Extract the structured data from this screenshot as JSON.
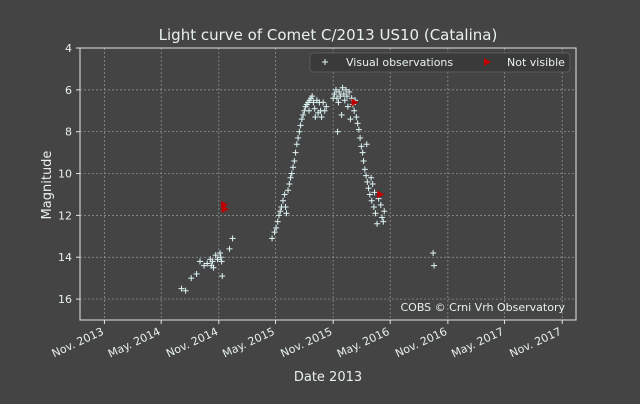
{
  "colors": {
    "background": "#444444",
    "axes_frame": "#dde7e7",
    "text": "#e8f0f0",
    "grid": "#9a9a9a",
    "visual_marker": "#ddf4f4",
    "not_visible_marker": "#c00000",
    "legend_bg": "#3a3a3a"
  },
  "chart_data": {
    "type": "scatter",
    "title": "Light curve of Comet C/2013 US10 (Catalina)",
    "xlabel": "Date 2013",
    "ylabel": "Magnitude",
    "credit": "COBS © Crni Vrh Observatory",
    "x_axis": {
      "kind": "date",
      "range": [
        "2013-08-15",
        "2017-12-15"
      ],
      "ticks": [
        "2013-11-01",
        "2014-05-01",
        "2014-11-01",
        "2015-05-01",
        "2015-11-01",
        "2016-05-01",
        "2016-11-01",
        "2017-05-01",
        "2017-11-01"
      ],
      "tick_labels": [
        "Nov. 2013",
        "May. 2014",
        "Nov. 2014",
        "May. 2015",
        "Nov. 2015",
        "May. 2016",
        "Nov. 2016",
        "May. 2017",
        "Nov. 2017"
      ]
    },
    "y_axis": {
      "range": [
        4,
        17
      ],
      "inverted": true,
      "ticks": [
        4,
        6,
        8,
        10,
        12,
        14,
        16
      ],
      "tick_labels": [
        "4",
        "6",
        "8",
        "10",
        "12",
        "14",
        "16"
      ]
    },
    "grid": true,
    "legend_position": "top-right",
    "series": [
      {
        "name": "Visual observations",
        "marker": "plus",
        "points": [
          [
            "2014-07-05",
            15.5
          ],
          [
            "2014-07-18",
            15.6
          ],
          [
            "2014-08-05",
            15.0
          ],
          [
            "2014-08-22",
            14.8
          ],
          [
            "2014-09-02",
            14.2
          ],
          [
            "2014-09-15",
            14.4
          ],
          [
            "2014-09-25",
            14.3
          ],
          [
            "2014-10-05",
            14.1
          ],
          [
            "2014-10-08",
            14.4
          ],
          [
            "2014-10-12",
            14.2
          ],
          [
            "2014-10-15",
            14.5
          ],
          [
            "2014-10-22",
            13.9
          ],
          [
            "2014-10-28",
            14.1
          ],
          [
            "2014-11-05",
            13.8
          ],
          [
            "2014-11-07",
            14.0
          ],
          [
            "2014-11-10",
            14.2
          ],
          [
            "2014-11-12",
            14.9
          ],
          [
            "2014-12-05",
            13.6
          ],
          [
            "2014-12-15",
            13.1
          ],
          [
            "2015-04-20",
            13.1
          ],
          [
            "2015-04-28",
            12.8
          ],
          [
            "2015-05-03",
            12.6
          ],
          [
            "2015-05-08",
            12.3
          ],
          [
            "2015-05-12",
            12.0
          ],
          [
            "2015-05-16",
            11.8
          ],
          [
            "2015-05-20",
            11.6
          ],
          [
            "2015-05-25",
            11.3
          ],
          [
            "2015-05-30",
            11.0
          ],
          [
            "2015-06-02",
            11.6
          ],
          [
            "2015-06-05",
            11.9
          ],
          [
            "2015-06-10",
            10.8
          ],
          [
            "2015-06-14",
            10.5
          ],
          [
            "2015-06-18",
            10.2
          ],
          [
            "2015-06-22",
            10.0
          ],
          [
            "2015-06-26",
            9.7
          ],
          [
            "2015-06-30",
            9.4
          ],
          [
            "2015-07-04",
            9.0
          ],
          [
            "2015-07-08",
            8.6
          ],
          [
            "2015-07-12",
            8.3
          ],
          [
            "2015-07-16",
            8.0
          ],
          [
            "2015-07-20",
            7.7
          ],
          [
            "2015-07-24",
            7.4
          ],
          [
            "2015-07-28",
            7.2
          ],
          [
            "2015-08-01",
            7.0
          ],
          [
            "2015-08-05",
            6.8
          ],
          [
            "2015-08-09",
            6.7
          ],
          [
            "2015-08-13",
            6.6
          ],
          [
            "2015-08-16",
            7.0
          ],
          [
            "2015-08-18",
            6.5
          ],
          [
            "2015-08-22",
            6.4
          ],
          [
            "2015-08-26",
            6.3
          ],
          [
            "2015-08-30",
            6.6
          ],
          [
            "2015-09-03",
            6.9
          ],
          [
            "2015-09-05",
            7.3
          ],
          [
            "2015-09-10",
            6.5
          ],
          [
            "2015-09-14",
            7.1
          ],
          [
            "2015-09-18",
            6.6
          ],
          [
            "2015-09-22",
            7.0
          ],
          [
            "2015-09-25",
            7.3
          ],
          [
            "2015-09-30",
            6.6
          ],
          [
            "2015-10-05",
            7.0
          ],
          [
            "2015-10-10",
            6.8
          ],
          [
            "2015-11-01",
            6.4
          ],
          [
            "2015-11-05",
            6.2
          ],
          [
            "2015-11-10",
            6.0
          ],
          [
            "2015-11-13",
            6.4
          ],
          [
            "2015-11-15",
            8.0
          ],
          [
            "2015-11-18",
            6.6
          ],
          [
            "2015-11-20",
            6.1
          ],
          [
            "2015-11-24",
            6.3
          ],
          [
            "2015-11-28",
            7.2
          ],
          [
            "2015-12-01",
            5.9
          ],
          [
            "2015-12-05",
            6.2
          ],
          [
            "2015-12-08",
            6.5
          ],
          [
            "2015-12-12",
            6.0
          ],
          [
            "2015-12-15",
            6.3
          ],
          [
            "2015-12-18",
            6.8
          ],
          [
            "2015-12-22",
            6.1
          ],
          [
            "2015-12-26",
            7.4
          ],
          [
            "2015-12-30",
            6.4
          ],
          [
            "2016-01-03",
            6.7
          ],
          [
            "2016-01-07",
            7.0
          ],
          [
            "2016-01-10",
            6.5
          ],
          [
            "2016-01-14",
            7.3
          ],
          [
            "2016-01-18",
            7.6
          ],
          [
            "2016-01-22",
            7.9
          ],
          [
            "2016-01-26",
            8.3
          ],
          [
            "2016-01-30",
            8.7
          ],
          [
            "2016-02-03",
            9.0
          ],
          [
            "2016-02-06",
            9.4
          ],
          [
            "2016-02-10",
            9.8
          ],
          [
            "2016-02-14",
            10.1
          ],
          [
            "2016-02-16",
            8.6
          ],
          [
            "2016-02-18",
            10.4
          ],
          [
            "2016-02-22",
            10.7
          ],
          [
            "2016-02-26",
            11.0
          ],
          [
            "2016-03-01",
            10.2
          ],
          [
            "2016-03-03",
            11.3
          ],
          [
            "2016-03-06",
            10.5
          ],
          [
            "2016-03-10",
            11.6
          ],
          [
            "2016-03-12",
            10.9
          ],
          [
            "2016-03-15",
            11.9
          ],
          [
            "2016-03-20",
            12.4
          ],
          [
            "2016-03-25",
            11.2
          ],
          [
            "2016-04-01",
            11.5
          ],
          [
            "2016-04-05",
            12.1
          ],
          [
            "2016-04-09",
            12.3
          ],
          [
            "2016-04-12",
            11.8
          ],
          [
            "2016-09-15",
            13.8
          ],
          [
            "2016-09-18",
            14.4
          ]
        ]
      },
      {
        "name": "Not visible",
        "marker": "triangle-right",
        "points": [
          [
            "2014-11-18",
            11.5
          ],
          [
            "2014-11-20",
            11.7
          ],
          [
            "2016-01-08",
            6.6
          ],
          [
            "2016-03-30",
            11.0
          ]
        ]
      }
    ]
  }
}
